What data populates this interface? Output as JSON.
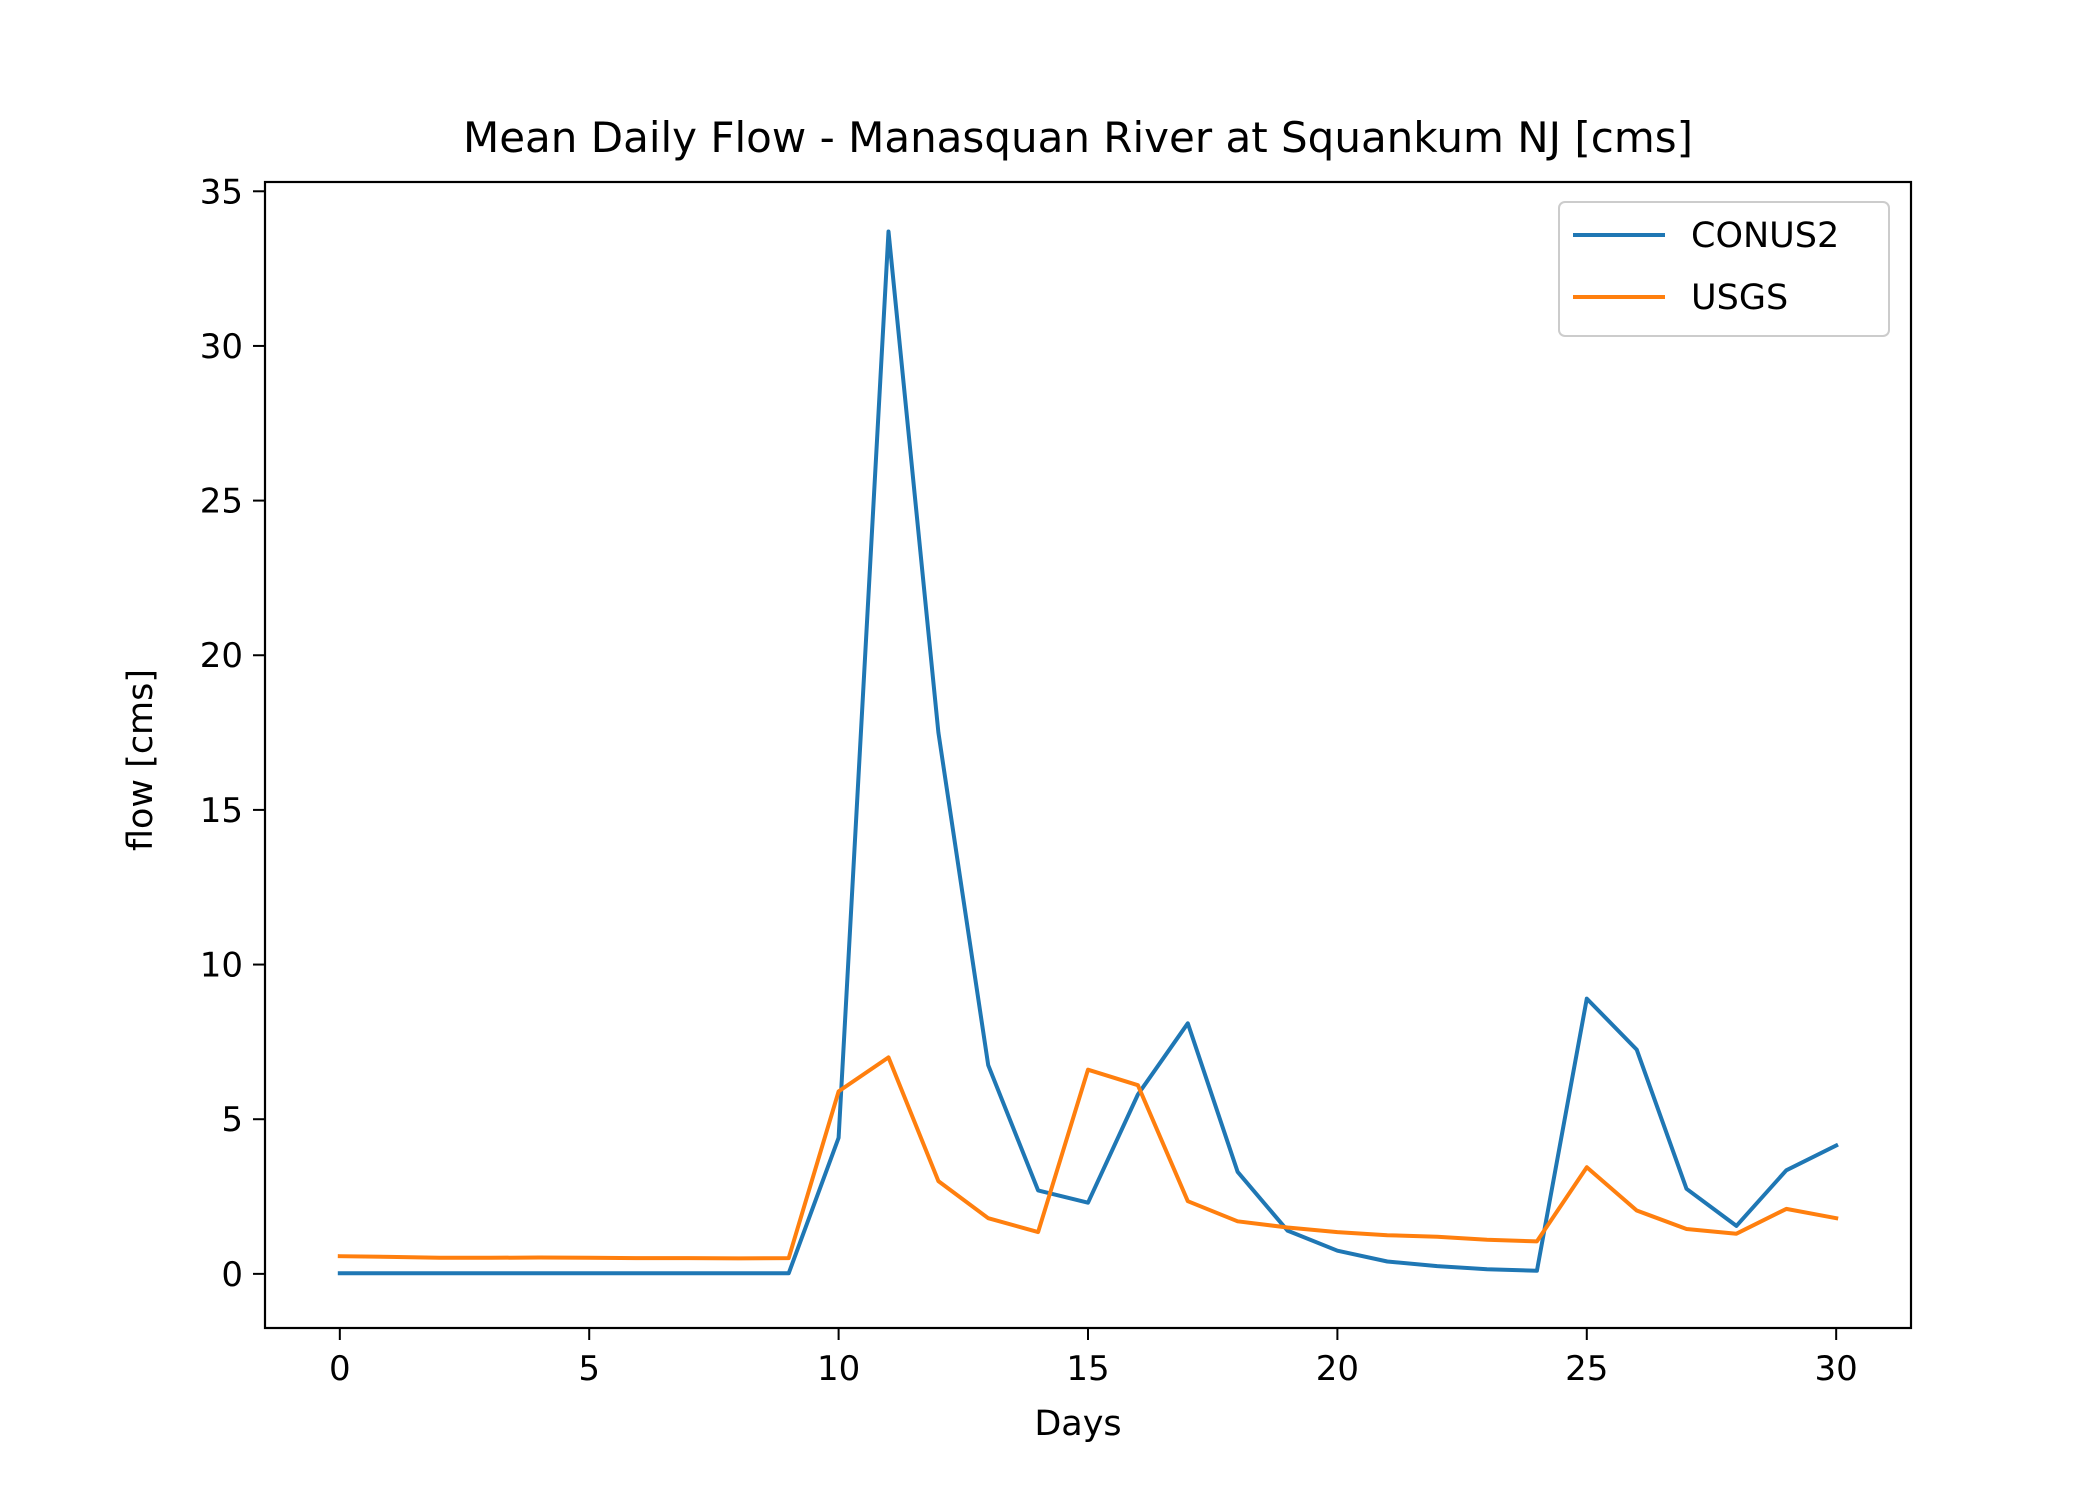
{
  "chart_data": {
    "type": "line",
    "title": "Mean Daily Flow - Manasquan River at Squankum NJ [cms]",
    "xlabel": "Days",
    "ylabel": "flow [cms]",
    "xlim": [
      -1.5,
      31.5
    ],
    "ylim": [
      -1.75,
      35.3
    ],
    "xticks": [
      0,
      5,
      10,
      15,
      20,
      25,
      30
    ],
    "yticks": [
      0,
      5,
      10,
      15,
      20,
      25,
      30,
      35
    ],
    "grid": false,
    "legend_position": "upper right",
    "x": [
      0,
      1,
      2,
      3,
      4,
      5,
      6,
      7,
      8,
      9,
      10,
      11,
      12,
      13,
      14,
      15,
      16,
      17,
      18,
      19,
      20,
      21,
      22,
      23,
      24,
      25,
      26,
      27,
      28,
      29,
      30
    ],
    "series": [
      {
        "name": "CONUS2",
        "color": "#1f77b4",
        "values": [
          0.02,
          0.02,
          0.02,
          0.02,
          0.02,
          0.02,
          0.02,
          0.02,
          0.02,
          0.02,
          4.4,
          33.7,
          17.5,
          6.75,
          2.7,
          2.3,
          5.8,
          8.1,
          3.3,
          1.4,
          0.75,
          0.4,
          0.25,
          0.15,
          0.1,
          8.9,
          7.25,
          2.75,
          1.55,
          3.35,
          4.15
        ]
      },
      {
        "name": "USGS",
        "color": "#ff7f0e",
        "values": [
          0.57,
          0.55,
          0.52,
          0.52,
          0.53,
          0.52,
          0.51,
          0.51,
          0.5,
          0.51,
          5.9,
          7.0,
          3.0,
          1.8,
          1.35,
          6.6,
          6.1,
          2.35,
          1.7,
          1.5,
          1.35,
          1.25,
          1.2,
          1.1,
          1.05,
          3.45,
          2.05,
          1.45,
          1.3,
          2.1,
          1.8
        ]
      }
    ]
  }
}
